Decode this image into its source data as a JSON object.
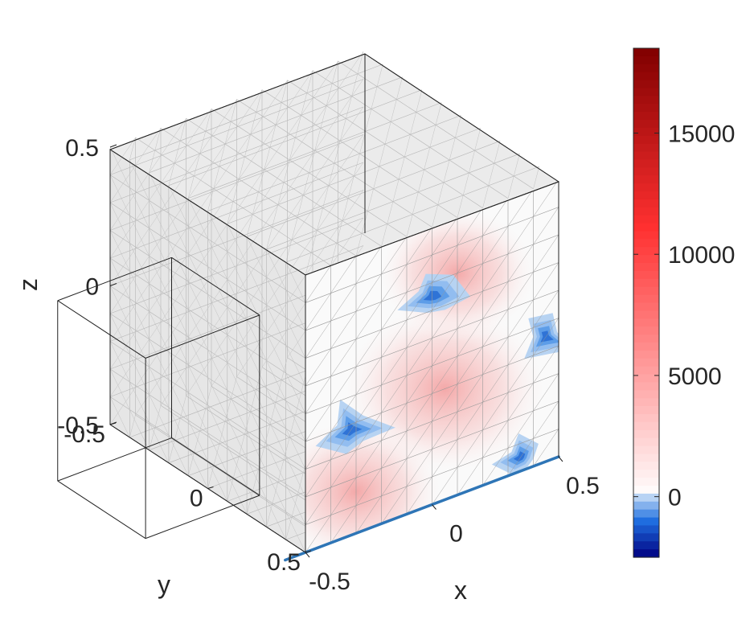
{
  "chart_data": {
    "type": "heatmap",
    "subtype": "3d-box-slice-contour",
    "title": "",
    "xlabel": "x",
    "ylabel": "y",
    "zlabel": "z",
    "xlim": [
      -0.5,
      0.5
    ],
    "ylim": [
      -0.5,
      0.5
    ],
    "zlim": [
      -0.5,
      0.5
    ],
    "x_ticks": [
      {
        "value": -0.5,
        "label": "-0.5"
      },
      {
        "value": 0,
        "label": "0"
      },
      {
        "value": 0.5,
        "label": "0.5"
      }
    ],
    "y_ticks": [
      {
        "value": -0.5,
        "label": "-0.5"
      },
      {
        "value": 0,
        "label": "0"
      },
      {
        "value": 0.5,
        "label": "0.5"
      }
    ],
    "z_ticks": [
      {
        "value": -0.5,
        "label": "-0.5"
      },
      {
        "value": 0,
        "label": "0"
      },
      {
        "value": 0.5,
        "label": "0.5"
      }
    ],
    "colorbar": {
      "range": [
        -2500,
        18500
      ],
      "ticks": [
        {
          "value": 0,
          "label": "0"
        },
        {
          "value": 5000,
          "label": "5000"
        },
        {
          "value": 10000,
          "label": "10000"
        },
        {
          "value": 15000,
          "label": "15000"
        }
      ],
      "colors": {
        "min": "#000080",
        "neg": "#1f6fe0",
        "zero": "#ffffff",
        "pos": "#ff3030",
        "max": "#800000"
      }
    },
    "slice": {
      "plane": "y = -0.5 (front face)",
      "colormap_value_range": [
        -1800,
        2500
      ]
    },
    "hotspots_positive": [
      {
        "x": 0.05,
        "z": -0.1,
        "value": 1800
      },
      {
        "x": -0.3,
        "z": -0.35,
        "value": 1200
      },
      {
        "x": 0.1,
        "z": 0.3,
        "value": 900
      }
    ],
    "hotspots_negative": [
      {
        "x": -0.32,
        "z": -0.12,
        "value": -1600
      },
      {
        "x": 0.0,
        "z": 0.25,
        "value": -1400
      },
      {
        "x": 0.45,
        "z": -0.05,
        "value": -1300
      },
      {
        "x": 0.35,
        "z": -0.45,
        "value": -1200
      }
    ],
    "inner_box": {
      "x": [
        -0.9,
        -0.45
      ],
      "y": [
        -0.2,
        0.25
      ],
      "z": [
        -0.45,
        0.2
      ]
    },
    "bottom_line": {
      "color": "#2e75b6",
      "from": {
        "x": -0.5,
        "y": -0.5,
        "z": -0.5
      },
      "to": {
        "x": 0.5,
        "y": -0.5,
        "z": -0.5
      }
    },
    "grid": true,
    "legend": "none"
  }
}
